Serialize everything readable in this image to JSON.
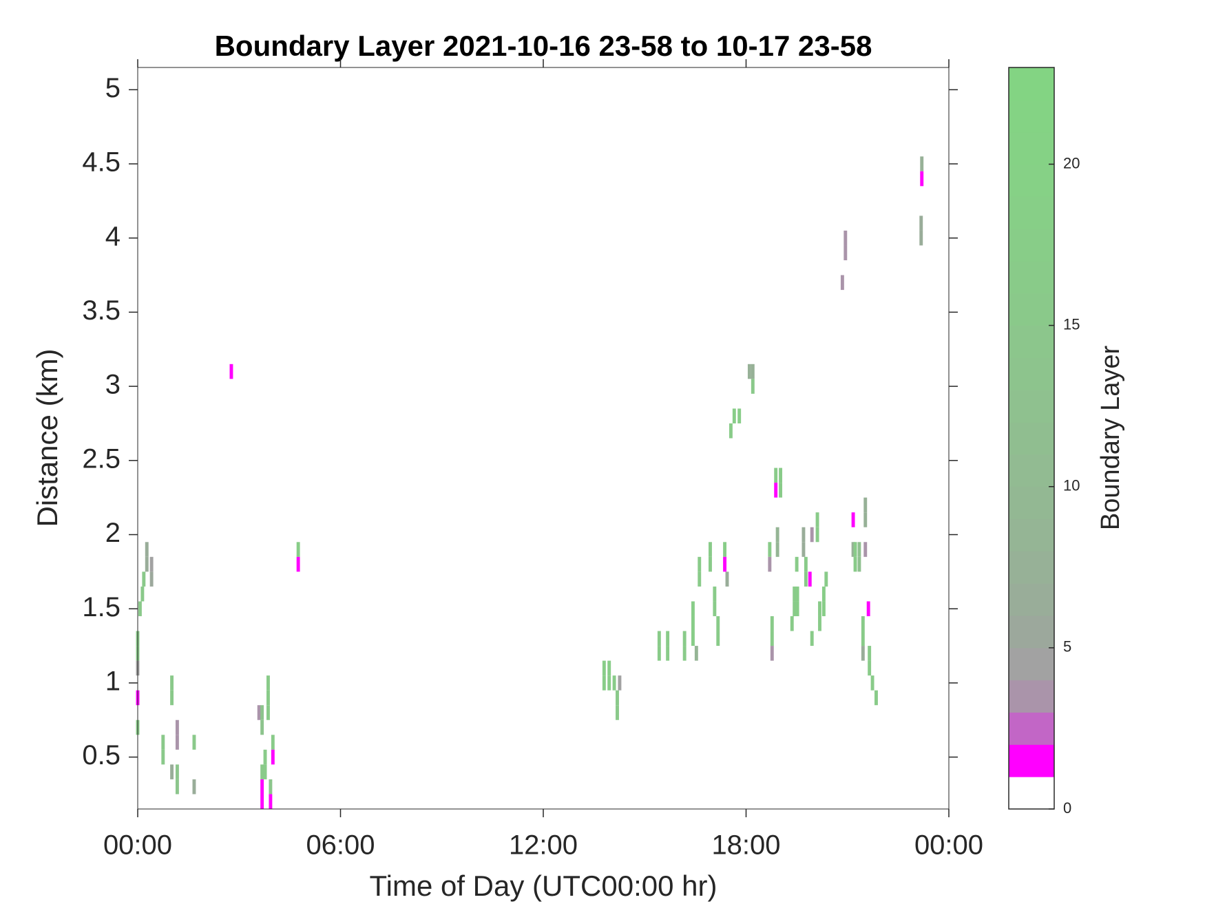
{
  "chart_data": {
    "type": "heatmap",
    "title": "Boundary Layer 2021-10-16 23-58 to 10-17 23-58",
    "xlabel": "Time of Day (UTC00:00 hr)",
    "ylabel": "Distance (km)",
    "colorbar_label": "Boundary Layer",
    "xlim": [
      0,
      24
    ],
    "xticks": [
      {
        "value": 0,
        "label": "00:00"
      },
      {
        "value": 6,
        "label": "06:00"
      },
      {
        "value": 12,
        "label": "12:00"
      },
      {
        "value": 18,
        "label": "18:00"
      },
      {
        "value": 24,
        "label": "00:00"
      }
    ],
    "ylim": [
      0.15,
      5.15
    ],
    "yticks": [
      0.5,
      1,
      1.5,
      2,
      2.5,
      3,
      3.5,
      4,
      4.5,
      5
    ],
    "clim": [
      0,
      23
    ],
    "cticks": [
      0,
      5,
      10,
      15,
      20
    ],
    "colormap": [
      "#ffffff",
      "#ff00ff",
      "#c266c6",
      "#aa94aa",
      "#a2a2a2",
      "#9ca89c",
      "#99ad99",
      "#97b197",
      "#95b595",
      "#93b893",
      "#92bb92",
      "#90be90",
      "#8fc18f",
      "#8dc48d",
      "#8cc68c",
      "#8ac98a",
      "#89cb89",
      "#88cd88",
      "#87cf87",
      "#86d186",
      "#85d285",
      "#84d384",
      "#83d483"
    ],
    "x": [
      0,
      0,
      0,
      0,
      0,
      0.07,
      0.14,
      0.18,
      0.27,
      0.27,
      0.41,
      0.41,
      0.75,
      0.75,
      1.01,
      1.01,
      1.01,
      1.17,
      1.17,
      1.17,
      1.17,
      1.67,
      1.67,
      2.77,
      3.59,
      3.68,
      3.68,
      3.68,
      3.68,
      3.68,
      3.77,
      3.77,
      3.86,
      3.86,
      3.86,
      3.93,
      3.93,
      4.0,
      4.0,
      4.75,
      4.75,
      13.8,
      13.8,
      13.95,
      13.95,
      14.1,
      14.19,
      14.19,
      14.26,
      15.43,
      15.43,
      15.68,
      15.68,
      16.18,
      16.18,
      16.43,
      16.43,
      16.43,
      16.53,
      16.62,
      16.62,
      16.94,
      16.94,
      17.07,
      17.07,
      17.17,
      17.17,
      17.37,
      17.37,
      17.44,
      17.55,
      17.65,
      17.8,
      18.1,
      18.2,
      18.2,
      18.7,
      18.7,
      18.77,
      18.77,
      18.77,
      18.88,
      18.88,
      18.93,
      18.93,
      19.02,
      19.02,
      19.36,
      19.43,
      19.43,
      19.52,
      19.52,
      19.5,
      19.7,
      19.7,
      19.77,
      19.77,
      19.89,
      19.95,
      19.95,
      20.11,
      20.11,
      20.18,
      20.18,
      20.3,
      20.3,
      20.37,
      20.85,
      20.94,
      20.94,
      21.17,
      21.17,
      21.23,
      21.23,
      21.35,
      21.35,
      21.46,
      21.46,
      21.46,
      21.53,
      21.53,
      21.53,
      21.62,
      21.65,
      21.65,
      21.74,
      21.85,
      23.18,
      23.18,
      23.2,
      23.2
    ],
    "y": [
      1.3,
      1.2,
      1.1,
      0.9,
      0.7,
      1.5,
      1.6,
      1.7,
      1.9,
      1.8,
      1.8,
      1.7,
      0.6,
      0.5,
      1.0,
      0.9,
      0.4,
      0.7,
      0.6,
      0.4,
      0.3,
      0.6,
      0.3,
      3.1,
      0.8,
      0.8,
      0.7,
      0.4,
      0.3,
      0.2,
      0.5,
      0.4,
      1.0,
      0.9,
      0.8,
      0.3,
      0.2,
      0.6,
      0.5,
      1.9,
      1.8,
      1.1,
      1.0,
      1.1,
      1.0,
      1.0,
      0.9,
      0.8,
      1.0,
      1.3,
      1.2,
      1.3,
      1.2,
      1.3,
      1.2,
      1.5,
      1.4,
      1.3,
      1.2,
      1.8,
      1.7,
      1.9,
      1.8,
      1.6,
      1.5,
      1.4,
      1.3,
      1.9,
      1.8,
      1.7,
      2.7,
      2.8,
      2.8,
      3.1,
      3.1,
      3.0,
      1.9,
      1.8,
      1.4,
      1.3,
      1.2,
      2.4,
      2.3,
      2.0,
      1.9,
      2.4,
      2.3,
      1.4,
      1.6,
      1.5,
      1.6,
      1.5,
      1.8,
      2.0,
      1.9,
      1.8,
      1.7,
      1.7,
      2.0,
      1.3,
      2.1,
      2.0,
      1.5,
      1.4,
      1.6,
      1.5,
      1.7,
      3.7,
      4.0,
      3.9,
      2.1,
      1.9,
      1.9,
      1.8,
      1.9,
      1.8,
      1.4,
      1.3,
      1.2,
      2.2,
      2.1,
      1.9,
      1.5,
      1.2,
      1.1,
      1.0,
      0.9,
      4.1,
      4.0,
      4.5,
      4.4
    ],
    "values": [
      15,
      15,
      4,
      1,
      16,
      15,
      15,
      15,
      6,
      6,
      4,
      5,
      15,
      15,
      15,
      15,
      6,
      3,
      3,
      14,
      14,
      15,
      6,
      1,
      3,
      13,
      13,
      15,
      1,
      1,
      16,
      16,
      16,
      16,
      16,
      14,
      1,
      16,
      1,
      17,
      1,
      17,
      17,
      17,
      17,
      16,
      15,
      15,
      4,
      16,
      16,
      16,
      16,
      16,
      16,
      17,
      17,
      17,
      8,
      16,
      16,
      16,
      16,
      16,
      16,
      16,
      16,
      17,
      1,
      6,
      16,
      17,
      17,
      7,
      7,
      15,
      16,
      3,
      16,
      16,
      3,
      16,
      1,
      8,
      8,
      16,
      16,
      16,
      16,
      16,
      17,
      17,
      16,
      6,
      6,
      16,
      16,
      1,
      3,
      16,
      16,
      16,
      16,
      16,
      17,
      17,
      16,
      3,
      3,
      3,
      1,
      7,
      16,
      16,
      12,
      12,
      16,
      16,
      6,
      7,
      7,
      3,
      1,
      16,
      16,
      16,
      16,
      6,
      6,
      7,
      1
    ]
  }
}
